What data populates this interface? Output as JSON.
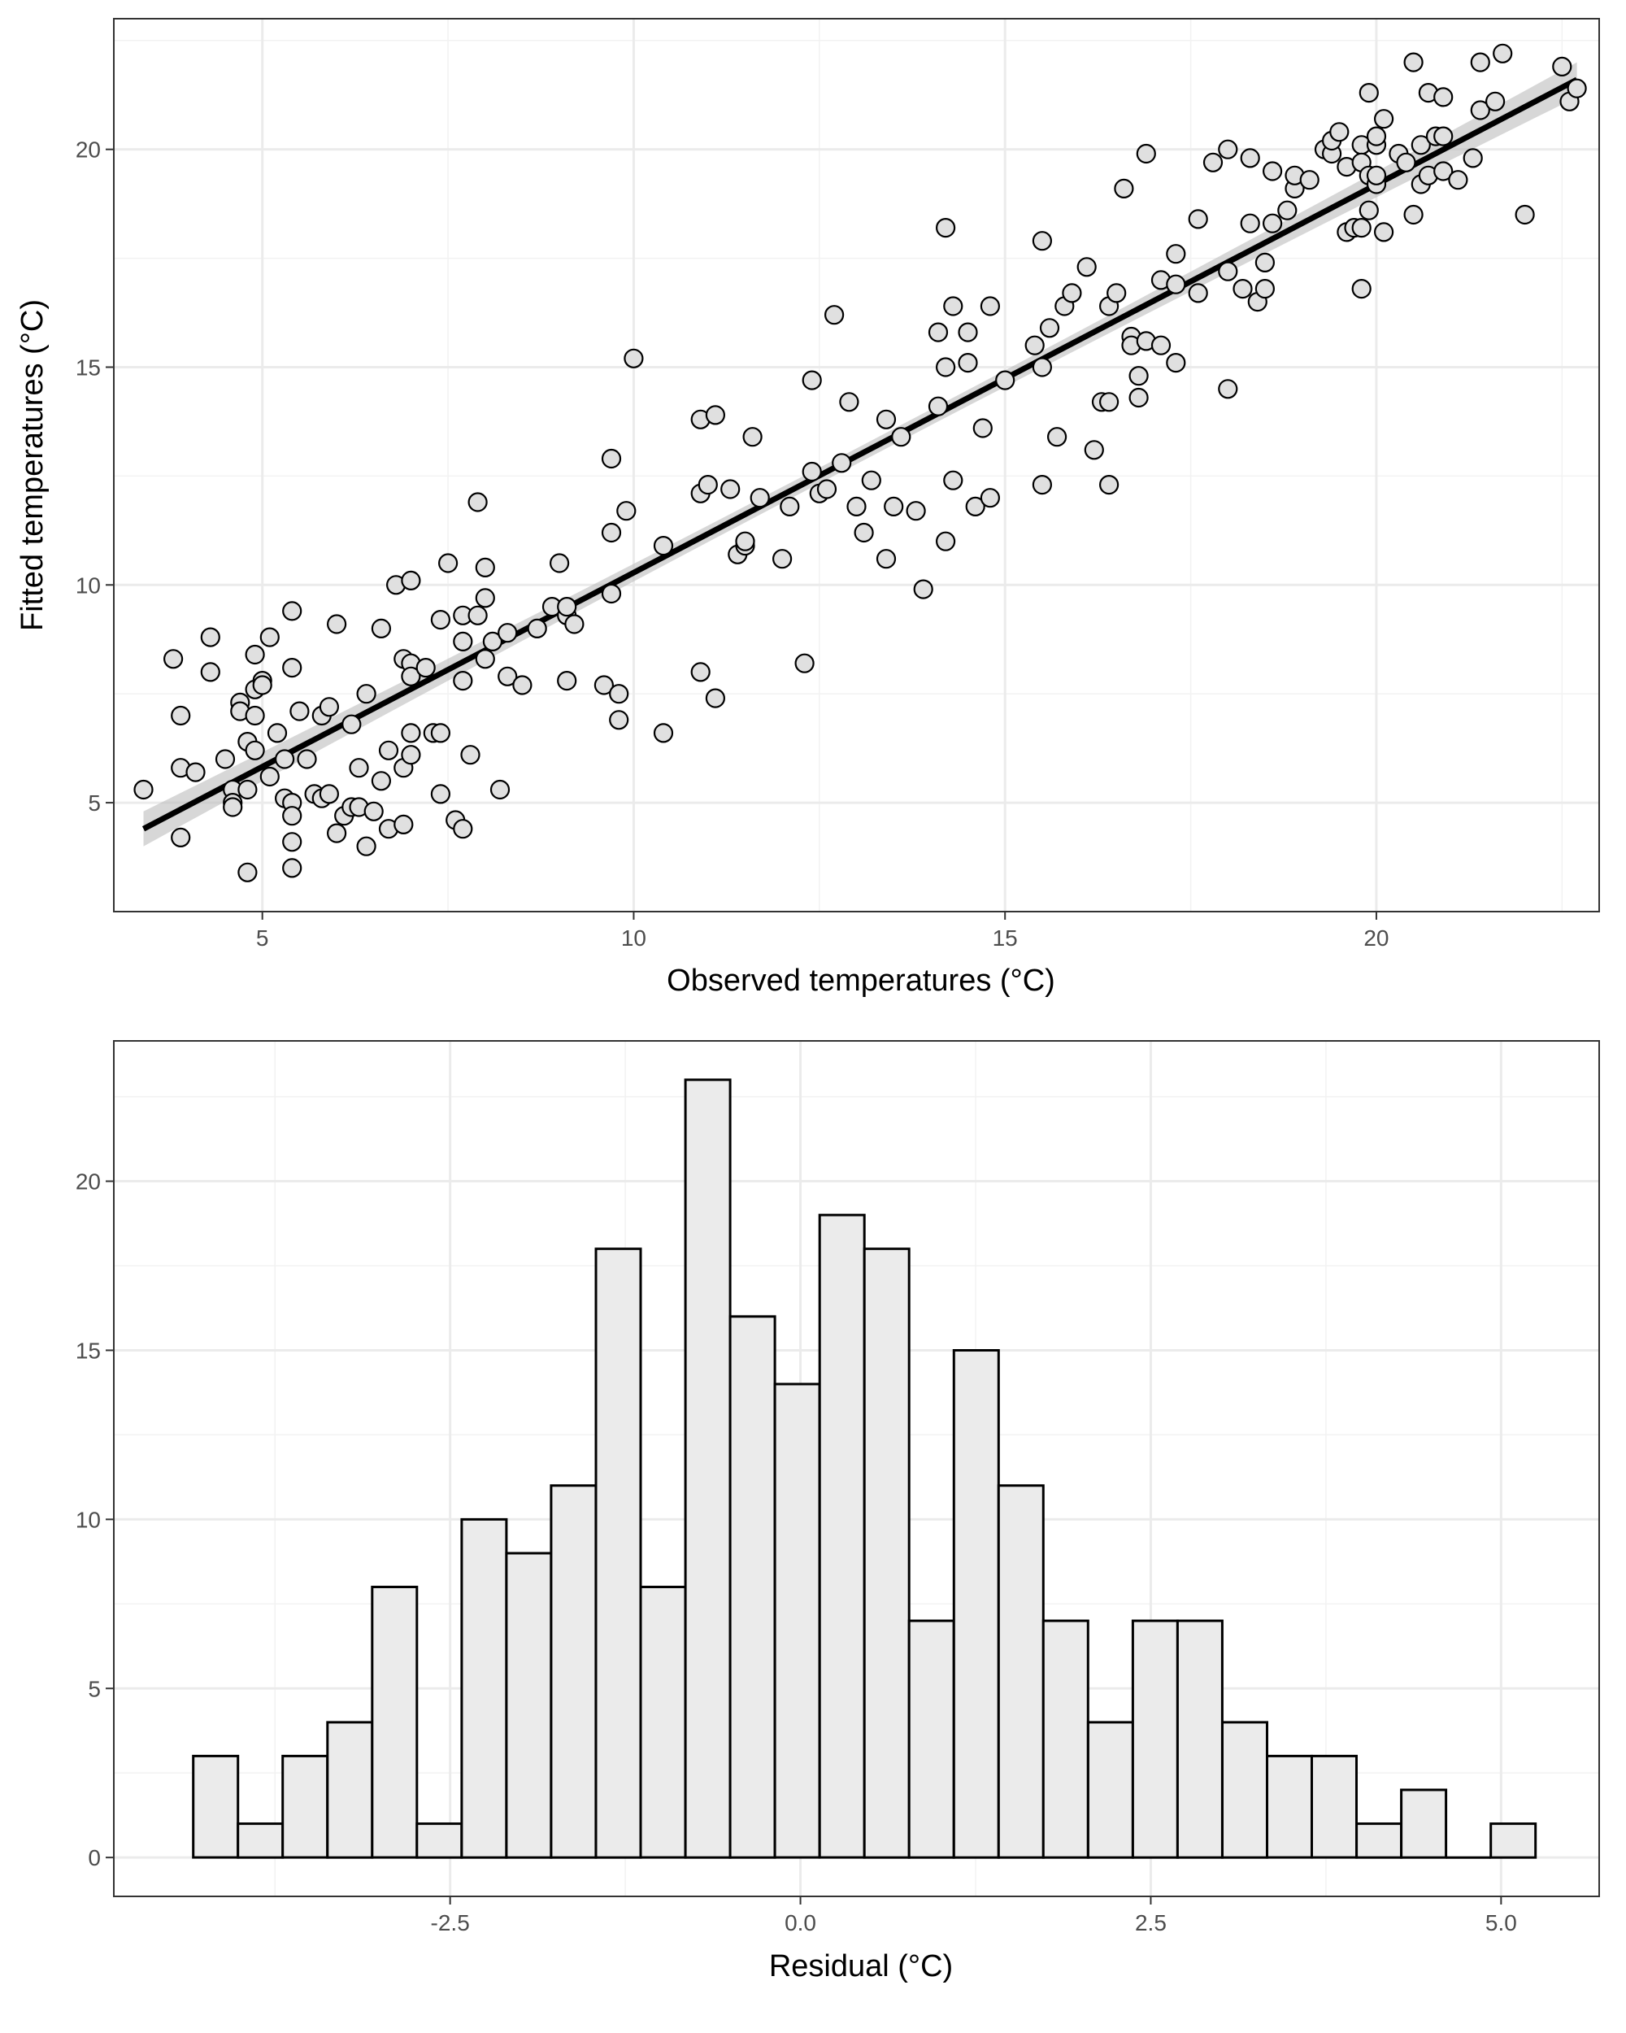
{
  "chart_data": [
    {
      "type": "scatter",
      "xlabel": "Observed temperatures (°C)",
      "ylabel": "Fitted temperatures (°C)",
      "xlim": [
        3.0,
        23.0
      ],
      "ylim": [
        2.5,
        23.0
      ],
      "x_ticks": [
        5,
        10,
        15,
        20
      ],
      "y_ticks": [
        5,
        10,
        15,
        20
      ],
      "grid": true,
      "legend": "none",
      "fit_line": {
        "x": [
          3.4,
          22.7
        ],
        "y": [
          4.4,
          21.6
        ]
      },
      "colors": {
        "points_fill": "#e0e0e0",
        "points_stroke": "#000000",
        "line": "#000000",
        "band": "#bdbdbd"
      },
      "points": [
        [
          3.4,
          5.3
        ],
        [
          3.8,
          8.3
        ],
        [
          3.9,
          7.0
        ],
        [
          3.9,
          5.8
        ],
        [
          3.9,
          4.2
        ],
        [
          4.1,
          5.7
        ],
        [
          4.3,
          8.8
        ],
        [
          4.3,
          8.0
        ],
        [
          4.5,
          6.0
        ],
        [
          4.6,
          5.3
        ],
        [
          4.6,
          5.0
        ],
        [
          4.6,
          4.9
        ],
        [
          4.7,
          7.3
        ],
        [
          4.7,
          7.1
        ],
        [
          4.8,
          6.4
        ],
        [
          4.8,
          5.3
        ],
        [
          4.8,
          3.4
        ],
        [
          4.9,
          7.6
        ],
        [
          4.9,
          7.0
        ],
        [
          4.9,
          6.2
        ],
        [
          4.9,
          8.4
        ],
        [
          5.0,
          7.8
        ],
        [
          5.0,
          7.7
        ],
        [
          5.1,
          8.8
        ],
        [
          5.1,
          5.6
        ],
        [
          5.2,
          6.6
        ],
        [
          5.3,
          6.0
        ],
        [
          5.3,
          5.1
        ],
        [
          5.4,
          9.4
        ],
        [
          5.4,
          8.1
        ],
        [
          5.4,
          5.0
        ],
        [
          5.4,
          4.7
        ],
        [
          5.4,
          4.1
        ],
        [
          5.4,
          3.5
        ],
        [
          5.5,
          7.1
        ],
        [
          5.6,
          6.0
        ],
        [
          5.7,
          5.2
        ],
        [
          5.8,
          7.0
        ],
        [
          5.8,
          5.1
        ],
        [
          5.9,
          7.2
        ],
        [
          5.9,
          5.2
        ],
        [
          6.0,
          9.1
        ],
        [
          6.0,
          4.3
        ],
        [
          6.1,
          4.7
        ],
        [
          6.2,
          6.8
        ],
        [
          6.2,
          4.9
        ],
        [
          6.3,
          5.8
        ],
        [
          6.3,
          4.9
        ],
        [
          6.4,
          7.5
        ],
        [
          6.4,
          4.0
        ],
        [
          6.5,
          4.8
        ],
        [
          6.6,
          9.0
        ],
        [
          6.6,
          5.5
        ],
        [
          6.7,
          6.2
        ],
        [
          6.7,
          4.4
        ],
        [
          6.8,
          10.0
        ],
        [
          6.9,
          8.3
        ],
        [
          6.9,
          5.8
        ],
        [
          6.9,
          4.5
        ],
        [
          7.0,
          10.1
        ],
        [
          7.0,
          8.2
        ],
        [
          7.0,
          7.9
        ],
        [
          7.0,
          6.6
        ],
        [
          7.0,
          6.1
        ],
        [
          7.2,
          8.1
        ],
        [
          7.3,
          6.6
        ],
        [
          7.4,
          9.2
        ],
        [
          7.4,
          6.6
        ],
        [
          7.4,
          5.2
        ],
        [
          7.5,
          10.5
        ],
        [
          7.6,
          4.6
        ],
        [
          7.7,
          9.3
        ],
        [
          7.7,
          8.7
        ],
        [
          7.7,
          7.8
        ],
        [
          7.7,
          4.4
        ],
        [
          7.8,
          6.1
        ],
        [
          7.9,
          9.3
        ],
        [
          7.9,
          11.9
        ],
        [
          8.0,
          10.4
        ],
        [
          8.0,
          9.7
        ],
        [
          8.0,
          8.3
        ],
        [
          8.1,
          8.7
        ],
        [
          8.2,
          5.3
        ],
        [
          8.3,
          7.9
        ],
        [
          8.3,
          8.9
        ],
        [
          8.5,
          7.7
        ],
        [
          8.7,
          9.0
        ],
        [
          8.9,
          9.5
        ],
        [
          9.0,
          10.5
        ],
        [
          9.1,
          9.3
        ],
        [
          9.1,
          9.5
        ],
        [
          9.1,
          7.8
        ],
        [
          9.2,
          9.1
        ],
        [
          9.6,
          7.7
        ],
        [
          9.7,
          12.9
        ],
        [
          9.7,
          11.2
        ],
        [
          9.7,
          9.8
        ],
        [
          9.8,
          7.5
        ],
        [
          9.8,
          6.9
        ],
        [
          9.9,
          11.7
        ],
        [
          10.0,
          15.2
        ],
        [
          10.4,
          10.9
        ],
        [
          10.4,
          6.6
        ],
        [
          10.9,
          13.8
        ],
        [
          10.9,
          12.1
        ],
        [
          10.9,
          8.0
        ],
        [
          11.0,
          12.3
        ],
        [
          11.1,
          13.9
        ],
        [
          11.1,
          7.4
        ],
        [
          11.3,
          12.2
        ],
        [
          11.4,
          10.7
        ],
        [
          11.5,
          10.9
        ],
        [
          11.5,
          11.0
        ],
        [
          11.6,
          13.4
        ],
        [
          11.7,
          12.0
        ],
        [
          12.0,
          10.6
        ],
        [
          12.1,
          11.8
        ],
        [
          12.3,
          8.2
        ],
        [
          12.4,
          14.7
        ],
        [
          12.4,
          12.6
        ],
        [
          12.5,
          12.1
        ],
        [
          12.6,
          12.2
        ],
        [
          12.7,
          16.2
        ],
        [
          12.8,
          12.8
        ],
        [
          12.9,
          14.2
        ],
        [
          13.0,
          11.8
        ],
        [
          13.1,
          11.2
        ],
        [
          13.2,
          12.4
        ],
        [
          13.4,
          13.8
        ],
        [
          13.4,
          10.6
        ],
        [
          13.5,
          11.8
        ],
        [
          13.6,
          13.4
        ],
        [
          13.8,
          11.7
        ],
        [
          13.9,
          9.9
        ],
        [
          14.1,
          15.8
        ],
        [
          14.1,
          14.1
        ],
        [
          14.2,
          18.2
        ],
        [
          14.2,
          15.0
        ],
        [
          14.2,
          11.0
        ],
        [
          14.3,
          16.4
        ],
        [
          14.3,
          12.4
        ],
        [
          14.5,
          15.8
        ],
        [
          14.5,
          15.1
        ],
        [
          14.6,
          11.8
        ],
        [
          14.7,
          13.6
        ],
        [
          14.8,
          16.4
        ],
        [
          14.8,
          12.0
        ],
        [
          15.0,
          14.7
        ],
        [
          15.4,
          15.5
        ],
        [
          15.5,
          17.9
        ],
        [
          15.5,
          15.0
        ],
        [
          15.5,
          12.3
        ],
        [
          15.6,
          15.9
        ],
        [
          15.7,
          13.4
        ],
        [
          15.8,
          16.4
        ],
        [
          15.9,
          16.7
        ],
        [
          16.1,
          17.3
        ],
        [
          16.2,
          13.1
        ],
        [
          16.3,
          14.2
        ],
        [
          16.4,
          16.4
        ],
        [
          16.4,
          14.2
        ],
        [
          16.4,
          12.3
        ],
        [
          16.5,
          16.7
        ],
        [
          16.6,
          19.1
        ],
        [
          16.7,
          15.7
        ],
        [
          16.7,
          15.5
        ],
        [
          16.8,
          14.3
        ],
        [
          16.8,
          14.8
        ],
        [
          16.9,
          15.6
        ],
        [
          16.9,
          19.9
        ],
        [
          17.1,
          17.0
        ],
        [
          17.1,
          15.5
        ],
        [
          17.3,
          17.6
        ],
        [
          17.3,
          16.9
        ],
        [
          17.3,
          15.1
        ],
        [
          17.6,
          18.4
        ],
        [
          17.6,
          16.7
        ],
        [
          17.8,
          19.7
        ],
        [
          18.0,
          20.0
        ],
        [
          18.0,
          17.2
        ],
        [
          18.0,
          14.5
        ],
        [
          18.2,
          16.8
        ],
        [
          18.3,
          19.8
        ],
        [
          18.3,
          18.3
        ],
        [
          18.4,
          16.5
        ],
        [
          18.5,
          17.4
        ],
        [
          18.5,
          16.8
        ],
        [
          18.6,
          19.5
        ],
        [
          18.6,
          18.3
        ],
        [
          18.8,
          18.6
        ],
        [
          18.9,
          19.1
        ],
        [
          18.9,
          19.4
        ],
        [
          19.1,
          19.3
        ],
        [
          19.3,
          20.0
        ],
        [
          19.4,
          19.9
        ],
        [
          19.4,
          20.2
        ],
        [
          19.5,
          20.4
        ],
        [
          19.6,
          19.6
        ],
        [
          19.6,
          18.1
        ],
        [
          19.7,
          18.2
        ],
        [
          19.8,
          20.1
        ],
        [
          19.8,
          19.7
        ],
        [
          19.8,
          18.2
        ],
        [
          19.8,
          16.8
        ],
        [
          19.9,
          21.3
        ],
        [
          19.9,
          19.4
        ],
        [
          19.9,
          18.6
        ],
        [
          20.0,
          20.1
        ],
        [
          20.0,
          20.3
        ],
        [
          20.0,
          19.2
        ],
        [
          20.0,
          19.4
        ],
        [
          20.1,
          20.7
        ],
        [
          20.1,
          18.1
        ],
        [
          20.3,
          19.9
        ],
        [
          20.4,
          19.7
        ],
        [
          20.5,
          22.0
        ],
        [
          20.5,
          18.5
        ],
        [
          20.6,
          20.1
        ],
        [
          20.6,
          19.2
        ],
        [
          20.7,
          21.3
        ],
        [
          20.7,
          19.4
        ],
        [
          20.8,
          20.3
        ],
        [
          20.9,
          21.2
        ],
        [
          20.9,
          20.3
        ],
        [
          20.9,
          19.5
        ],
        [
          21.1,
          19.3
        ],
        [
          21.3,
          19.8
        ],
        [
          21.4,
          20.9
        ],
        [
          21.4,
          22.0
        ],
        [
          21.6,
          21.1
        ],
        [
          21.7,
          22.2
        ],
        [
          22.0,
          18.5
        ],
        [
          22.5,
          21.9
        ],
        [
          22.6,
          21.1
        ],
        [
          22.7,
          21.4
        ]
      ]
    },
    {
      "type": "bar",
      "subtype": "histogram",
      "xlabel": "Residual (°C)",
      "ylabel": "",
      "xlim": [
        -4.9,
        5.7
      ],
      "ylim": [
        -1.15,
        24.15
      ],
      "x_ticks": [
        -2.5,
        0.0,
        2.5,
        5.0
      ],
      "x_tick_labels": [
        "-2.5",
        "0.0",
        "2.5",
        "5.0"
      ],
      "y_ticks": [
        0,
        5,
        10,
        15,
        20
      ],
      "grid": true,
      "legend": "none",
      "bin_start": -4.3333,
      "bin_width": 0.3193,
      "values": [
        3,
        1,
        3,
        4,
        8,
        1,
        10,
        9,
        11,
        18,
        8,
        23,
        16,
        14,
        19,
        18,
        7,
        15,
        11,
        7,
        4,
        7,
        7,
        4,
        3,
        3,
        1,
        2,
        0,
        1
      ],
      "colors": {
        "bar_fill": "#ebebeb",
        "bar_stroke": "#000000"
      }
    }
  ]
}
